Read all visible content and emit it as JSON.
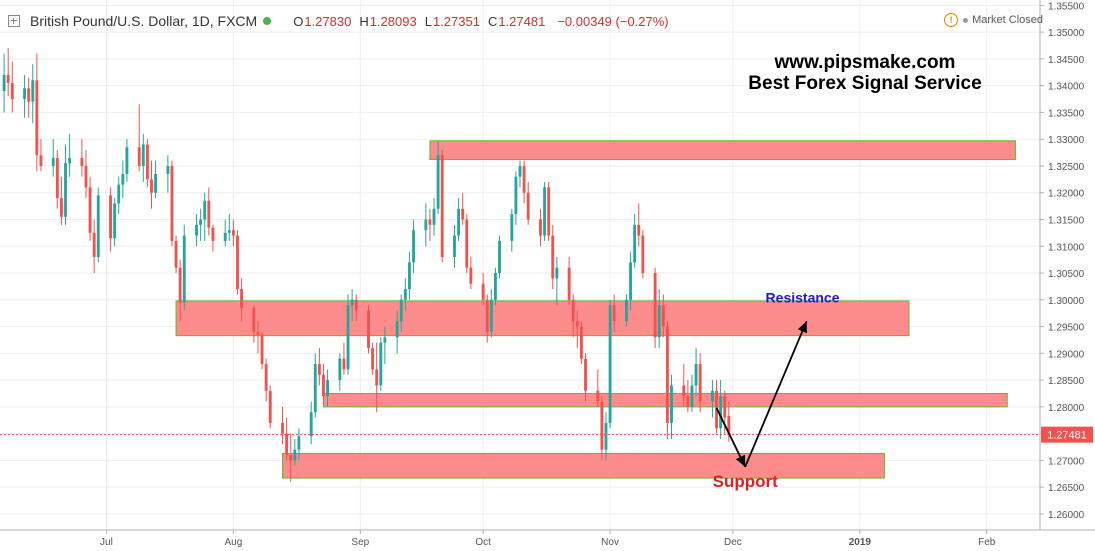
{
  "header": {
    "symbol": "British Pound/U.S. Dollar, 1D, FXCM",
    "open_label": "O",
    "open_value": "1.27830",
    "high_label": "H",
    "high_value": "1.28093",
    "low_label": "L",
    "low_value": "1.27351",
    "close_label": "C",
    "close_value": "1.27481",
    "change": "−0.00349 (−0.27%)"
  },
  "market_status": "Market Closed",
  "watermark": {
    "line1": "www.pipsmake.com",
    "line2": "Best Forex Signal Service"
  },
  "colors": {
    "up": "#26a69a",
    "down": "#ef5350",
    "zone_fill": "#ff8080",
    "zone_border": "#5fb832",
    "resistance_text": "#1a1acc",
    "support_text": "#e02020",
    "price_label_bg": "#ef5350"
  },
  "chart_data": {
    "type": "candlestick",
    "instrument": "GBP/USD",
    "timeframe": "1D",
    "ylim": [
      1.257,
      1.356
    ],
    "xlim": [
      "2018-06-05",
      "2019-02-14"
    ],
    "yticks": [
      "1.35500",
      "1.35000",
      "1.34500",
      "1.34000",
      "1.33500",
      "1.33000",
      "1.32500",
      "1.32000",
      "1.31500",
      "1.31000",
      "1.30500",
      "1.30000",
      "1.29500",
      "1.29000",
      "1.28500",
      "1.28000",
      "1.27500",
      "1.27000",
      "1.26500",
      "1.26000"
    ],
    "xticks": [
      {
        "label": "Jul",
        "date": "2018-07-01"
      },
      {
        "label": "Aug",
        "date": "2018-08-01"
      },
      {
        "label": "Sep",
        "date": "2018-09-01"
      },
      {
        "label": "Oct",
        "date": "2018-10-01"
      },
      {
        "label": "Nov",
        "date": "2018-11-01"
      },
      {
        "label": "Dec",
        "date": "2018-12-01"
      },
      {
        "label": "2019",
        "date": "2019-01-01"
      },
      {
        "label": "Feb",
        "date": "2019-02-01"
      }
    ],
    "last_price": "1.27481",
    "zones": [
      {
        "start": "2018-09-18",
        "end": "2019-02-08",
        "top": 1.3297,
        "bottom": 1.3262
      },
      {
        "start": "2018-07-18",
        "end": "2019-01-13",
        "top": 1.2998,
        "bottom": 1.2933
      },
      {
        "start": "2018-08-23",
        "end": "2019-02-06",
        "top": 1.2825,
        "bottom": 1.28
      },
      {
        "start": "2018-08-13",
        "end": "2019-01-07",
        "top": 1.2713,
        "bottom": 1.2667
      }
    ],
    "annotations": [
      {
        "text": "Resistance",
        "date": "2018-12-18",
        "price": 1.2995
      },
      {
        "text": "Support",
        "date": "2018-12-04",
        "price": 1.265
      }
    ],
    "arrows": [
      {
        "from": {
          "date": "2018-11-27",
          "price": 1.2798
        },
        "to": {
          "date": "2018-12-04",
          "price": 1.2688
        }
      },
      {
        "from": {
          "date": "2018-12-04",
          "price": 1.2688
        },
        "to": {
          "date": "2018-12-19",
          "price": 1.296
        }
      }
    ],
    "candles": [
      {
        "d": "2018-06-06",
        "o": 1.339,
        "h": 1.346,
        "l": 1.335,
        "c": 1.342
      },
      {
        "d": "2018-06-07",
        "o": 1.342,
        "h": 1.347,
        "l": 1.338,
        "c": 1.3405
      },
      {
        "d": "2018-06-08",
        "o": 1.3405,
        "h": 1.3445,
        "l": 1.335,
        "c": 1.3375
      },
      {
        "d": "2018-06-11",
        "o": 1.3375,
        "h": 1.342,
        "l": 1.334,
        "c": 1.3395
      },
      {
        "d": "2018-06-12",
        "o": 1.3395,
        "h": 1.3415,
        "l": 1.334,
        "c": 1.337
      },
      {
        "d": "2018-06-13",
        "o": 1.337,
        "h": 1.344,
        "l": 1.333,
        "c": 1.341
      },
      {
        "d": "2018-06-14",
        "o": 1.341,
        "h": 1.346,
        "l": 1.324,
        "c": 1.327
      },
      {
        "d": "2018-06-15",
        "o": 1.327,
        "h": 1.33,
        "l": 1.324,
        "c": 1.325
      },
      {
        "d": "2018-06-18",
        "o": 1.325,
        "h": 1.33,
        "l": 1.323,
        "c": 1.3265
      },
      {
        "d": "2018-06-19",
        "o": 1.3265,
        "h": 1.328,
        "l": 1.317,
        "c": 1.319
      },
      {
        "d": "2018-06-20",
        "o": 1.319,
        "h": 1.323,
        "l": 1.314,
        "c": 1.3155
      },
      {
        "d": "2018-06-21",
        "o": 1.3155,
        "h": 1.329,
        "l": 1.314,
        "c": 1.3255
      },
      {
        "d": "2018-06-22",
        "o": 1.3255,
        "h": 1.331,
        "l": 1.323,
        "c": 1.3265
      },
      {
        "d": "2018-06-25",
        "o": 1.3265,
        "h": 1.33,
        "l": 1.323,
        "c": 1.325
      },
      {
        "d": "2018-06-26",
        "o": 1.325,
        "h": 1.328,
        "l": 1.319,
        "c": 1.321
      },
      {
        "d": "2018-06-27",
        "o": 1.321,
        "h": 1.323,
        "l": 1.311,
        "c": 1.3125
      },
      {
        "d": "2018-06-28",
        "o": 1.3125,
        "h": 1.315,
        "l": 1.305,
        "c": 1.308
      },
      {
        "d": "2018-06-29",
        "o": 1.308,
        "h": 1.321,
        "l": 1.307,
        "c": 1.3195
      },
      {
        "d": "2018-07-02",
        "o": 1.3195,
        "h": 1.321,
        "l": 1.309,
        "c": 1.3115
      },
      {
        "d": "2018-07-03",
        "o": 1.3115,
        "h": 1.319,
        "l": 1.31,
        "c": 1.318
      },
      {
        "d": "2018-07-04",
        "o": 1.318,
        "h": 1.323,
        "l": 1.316,
        "c": 1.3215
      },
      {
        "d": "2018-07-05",
        "o": 1.3215,
        "h": 1.326,
        "l": 1.319,
        "c": 1.3235
      },
      {
        "d": "2018-07-06",
        "o": 1.3235,
        "h": 1.33,
        "l": 1.322,
        "c": 1.3285
      },
      {
        "d": "2018-07-09",
        "o": 1.3285,
        "h": 1.3365,
        "l": 1.324,
        "c": 1.325
      },
      {
        "d": "2018-07-10",
        "o": 1.325,
        "h": 1.331,
        "l": 1.322,
        "c": 1.329
      },
      {
        "d": "2018-07-11",
        "o": 1.329,
        "h": 1.33,
        "l": 1.321,
        "c": 1.3225
      },
      {
        "d": "2018-07-12",
        "o": 1.3225,
        "h": 1.326,
        "l": 1.317,
        "c": 1.32
      },
      {
        "d": "2018-07-13",
        "o": 1.32,
        "h": 1.326,
        "l": 1.319,
        "c": 1.3235
      },
      {
        "d": "2018-07-16",
        "o": 1.3235,
        "h": 1.327,
        "l": 1.32,
        "c": 1.325
      },
      {
        "d": "2018-07-17",
        "o": 1.325,
        "h": 1.326,
        "l": 1.31,
        "c": 1.311
      },
      {
        "d": "2018-07-18",
        "o": 1.311,
        "h": 1.312,
        "l": 1.305,
        "c": 1.306
      },
      {
        "d": "2018-07-19",
        "o": 1.306,
        "h": 1.3075,
        "l": 1.296,
        "c": 1.2995
      },
      {
        "d": "2018-07-20",
        "o": 1.2995,
        "h": 1.314,
        "l": 1.298,
        "c": 1.312
      },
      {
        "d": "2018-07-23",
        "o": 1.312,
        "h": 1.316,
        "l": 1.31,
        "c": 1.314
      },
      {
        "d": "2018-07-24",
        "o": 1.314,
        "h": 1.317,
        "l": 1.311,
        "c": 1.315
      },
      {
        "d": "2018-07-25",
        "o": 1.315,
        "h": 1.32,
        "l": 1.311,
        "c": 1.3185
      },
      {
        "d": "2018-07-26",
        "o": 1.3185,
        "h": 1.321,
        "l": 1.312,
        "c": 1.3135
      },
      {
        "d": "2018-07-27",
        "o": 1.3135,
        "h": 1.314,
        "l": 1.309,
        "c": 1.311
      },
      {
        "d": "2018-07-30",
        "o": 1.311,
        "h": 1.315,
        "l": 1.31,
        "c": 1.3125
      },
      {
        "d": "2018-07-31",
        "o": 1.3125,
        "h": 1.316,
        "l": 1.311,
        "c": 1.313
      },
      {
        "d": "2018-08-01",
        "o": 1.313,
        "h": 1.315,
        "l": 1.31,
        "c": 1.312
      },
      {
        "d": "2018-08-02",
        "o": 1.312,
        "h": 1.313,
        "l": 1.301,
        "c": 1.302
      },
      {
        "d": "2018-08-03",
        "o": 1.302,
        "h": 1.304,
        "l": 1.296,
        "c": 1.2985
      },
      {
        "d": "2018-08-06",
        "o": 1.2985,
        "h": 1.299,
        "l": 1.292,
        "c": 1.294
      },
      {
        "d": "2018-08-07",
        "o": 1.294,
        "h": 1.296,
        "l": 1.29,
        "c": 1.2935
      },
      {
        "d": "2018-08-08",
        "o": 1.2935,
        "h": 1.294,
        "l": 1.287,
        "c": 1.288
      },
      {
        "d": "2018-08-09",
        "o": 1.288,
        "h": 1.289,
        "l": 1.281,
        "c": 1.283
      },
      {
        "d": "2018-08-10",
        "o": 1.283,
        "h": 1.284,
        "l": 1.276,
        "c": 1.277
      },
      {
        "d": "2018-08-13",
        "o": 1.277,
        "h": 1.28,
        "l": 1.273,
        "c": 1.275
      },
      {
        "d": "2018-08-14",
        "o": 1.275,
        "h": 1.278,
        "l": 1.27,
        "c": 1.271
      },
      {
        "d": "2018-08-15",
        "o": 1.271,
        "h": 1.275,
        "l": 1.266,
        "c": 1.27
      },
      {
        "d": "2018-08-16",
        "o": 1.27,
        "h": 1.274,
        "l": 1.269,
        "c": 1.272
      },
      {
        "d": "2018-08-17",
        "o": 1.272,
        "h": 1.276,
        "l": 1.27,
        "c": 1.2745
      },
      {
        "d": "2018-08-20",
        "o": 1.2745,
        "h": 1.281,
        "l": 1.273,
        "c": 1.279
      },
      {
        "d": "2018-08-21",
        "o": 1.279,
        "h": 1.29,
        "l": 1.278,
        "c": 1.288
      },
      {
        "d": "2018-08-22",
        "o": 1.288,
        "h": 1.291,
        "l": 1.284,
        "c": 1.286
      },
      {
        "d": "2018-08-23",
        "o": 1.286,
        "h": 1.288,
        "l": 1.2805,
        "c": 1.282
      },
      {
        "d": "2018-08-24",
        "o": 1.282,
        "h": 1.287,
        "l": 1.28,
        "c": 1.285
      },
      {
        "d": "2018-08-27",
        "o": 1.285,
        "h": 1.29,
        "l": 1.283,
        "c": 1.289
      },
      {
        "d": "2018-08-28",
        "o": 1.289,
        "h": 1.292,
        "l": 1.286,
        "c": 1.287
      },
      {
        "d": "2018-08-29",
        "o": 1.287,
        "h": 1.301,
        "l": 1.286,
        "c": 1.299
      },
      {
        "d": "2018-08-30",
        "o": 1.299,
        "h": 1.302,
        "l": 1.296,
        "c": 1.3
      },
      {
        "d": "2018-08-31",
        "o": 1.3,
        "h": 1.301,
        "l": 1.296,
        "c": 1.298
      },
      {
        "d": "2018-09-03",
        "o": 1.298,
        "h": 1.299,
        "l": 1.29,
        "c": 1.291
      },
      {
        "d": "2018-09-04",
        "o": 1.291,
        "h": 1.292,
        "l": 1.286,
        "c": 1.287
      },
      {
        "d": "2018-09-05",
        "o": 1.287,
        "h": 1.292,
        "l": 1.279,
        "c": 1.284
      },
      {
        "d": "2018-09-06",
        "o": 1.284,
        "h": 1.293,
        "l": 1.283,
        "c": 1.292
      },
      {
        "d": "2018-09-07",
        "o": 1.292,
        "h": 1.295,
        "l": 1.288,
        "c": 1.293
      },
      {
        "d": "2018-09-10",
        "o": 1.293,
        "h": 1.298,
        "l": 1.29,
        "c": 1.296
      },
      {
        "d": "2018-09-11",
        "o": 1.296,
        "h": 1.301,
        "l": 1.294,
        "c": 1.3
      },
      {
        "d": "2018-09-12",
        "o": 1.3,
        "h": 1.304,
        "l": 1.298,
        "c": 1.302
      },
      {
        "d": "2018-09-13",
        "o": 1.302,
        "h": 1.309,
        "l": 1.3,
        "c": 1.307
      },
      {
        "d": "2018-09-14",
        "o": 1.307,
        "h": 1.315,
        "l": 1.305,
        "c": 1.313
      },
      {
        "d": "2018-09-17",
        "o": 1.313,
        "h": 1.318,
        "l": 1.31,
        "c": 1.315
      },
      {
        "d": "2018-09-18",
        "o": 1.315,
        "h": 1.317,
        "l": 1.311,
        "c": 1.314
      },
      {
        "d": "2018-09-19",
        "o": 1.314,
        "h": 1.319,
        "l": 1.312,
        "c": 1.317
      },
      {
        "d": "2018-09-20",
        "o": 1.317,
        "h": 1.3295,
        "l": 1.316,
        "c": 1.327
      },
      {
        "d": "2018-09-21",
        "o": 1.327,
        "h": 1.328,
        "l": 1.307,
        "c": 1.308
      },
      {
        "d": "2018-09-24",
        "o": 1.308,
        "h": 1.314,
        "l": 1.306,
        "c": 1.312
      },
      {
        "d": "2018-09-25",
        "o": 1.312,
        "h": 1.319,
        "l": 1.311,
        "c": 1.317
      },
      {
        "d": "2018-09-26",
        "o": 1.317,
        "h": 1.32,
        "l": 1.314,
        "c": 1.315
      },
      {
        "d": "2018-09-27",
        "o": 1.315,
        "h": 1.316,
        "l": 1.305,
        "c": 1.306
      },
      {
        "d": "2018-09-28",
        "o": 1.306,
        "h": 1.308,
        "l": 1.302,
        "c": 1.303
      },
      {
        "d": "2018-10-01",
        "o": 1.303,
        "h": 1.305,
        "l": 1.299,
        "c": 1.3
      },
      {
        "d": "2018-10-02",
        "o": 1.3,
        "h": 1.301,
        "l": 1.292,
        "c": 1.294
      },
      {
        "d": "2018-10-03",
        "o": 1.294,
        "h": 1.302,
        "l": 1.293,
        "c": 1.3
      },
      {
        "d": "2018-10-04",
        "o": 1.3,
        "h": 1.306,
        "l": 1.299,
        "c": 1.305
      },
      {
        "d": "2018-10-05",
        "o": 1.305,
        "h": 1.312,
        "l": 1.304,
        "c": 1.311
      },
      {
        "d": "2018-10-08",
        "o": 1.311,
        "h": 1.317,
        "l": 1.309,
        "c": 1.316
      },
      {
        "d": "2018-10-09",
        "o": 1.316,
        "h": 1.324,
        "l": 1.314,
        "c": 1.323
      },
      {
        "d": "2018-10-10",
        "o": 1.323,
        "h": 1.326,
        "l": 1.321,
        "c": 1.325
      },
      {
        "d": "2018-10-11",
        "o": 1.325,
        "h": 1.326,
        "l": 1.318,
        "c": 1.32
      },
      {
        "d": "2018-10-12",
        "o": 1.32,
        "h": 1.322,
        "l": 1.314,
        "c": 1.315
      },
      {
        "d": "2018-10-15",
        "o": 1.315,
        "h": 1.317,
        "l": 1.31,
        "c": 1.312
      },
      {
        "d": "2018-10-16",
        "o": 1.312,
        "h": 1.322,
        "l": 1.311,
        "c": 1.321
      },
      {
        "d": "2018-10-17",
        "o": 1.321,
        "h": 1.322,
        "l": 1.311,
        "c": 1.312
      },
      {
        "d": "2018-10-18",
        "o": 1.312,
        "h": 1.314,
        "l": 1.302,
        "c": 1.304
      },
      {
        "d": "2018-10-19",
        "o": 1.304,
        "h": 1.308,
        "l": 1.299,
        "c": 1.306
      },
      {
        "d": "2018-10-22",
        "o": 1.306,
        "h": 1.308,
        "l": 1.299,
        "c": 1.3
      },
      {
        "d": "2018-10-23",
        "o": 1.3,
        "h": 1.301,
        "l": 1.293,
        "c": 1.296
      },
      {
        "d": "2018-10-24",
        "o": 1.296,
        "h": 1.298,
        "l": 1.291,
        "c": 1.295
      },
      {
        "d": "2018-10-25",
        "o": 1.295,
        "h": 1.296,
        "l": 1.288,
        "c": 1.289
      },
      {
        "d": "2018-10-26",
        "o": 1.289,
        "h": 1.29,
        "l": 1.281,
        "c": 1.283
      },
      {
        "d": "2018-10-29",
        "o": 1.283,
        "h": 1.287,
        "l": 1.28,
        "c": 1.281
      },
      {
        "d": "2018-10-30",
        "o": 1.281,
        "h": 1.282,
        "l": 1.27,
        "c": 1.272
      },
      {
        "d": "2018-10-31",
        "o": 1.272,
        "h": 1.279,
        "l": 1.27,
        "c": 1.277
      },
      {
        "d": "2018-11-01",
        "o": 1.277,
        "h": 1.3,
        "l": 1.276,
        "c": 1.299
      },
      {
        "d": "2018-11-02",
        "o": 1.299,
        "h": 1.301,
        "l": 1.294,
        "c": 1.296
      },
      {
        "d": "2018-11-05",
        "o": 1.296,
        "h": 1.301,
        "l": 1.295,
        "c": 1.3
      },
      {
        "d": "2018-11-06",
        "o": 1.3,
        "h": 1.309,
        "l": 1.298,
        "c": 1.307
      },
      {
        "d": "2018-11-07",
        "o": 1.307,
        "h": 1.316,
        "l": 1.306,
        "c": 1.314
      },
      {
        "d": "2018-11-08",
        "o": 1.314,
        "h": 1.318,
        "l": 1.31,
        "c": 1.312
      },
      {
        "d": "2018-11-09",
        "o": 1.312,
        "h": 1.313,
        "l": 1.304,
        "c": 1.305
      },
      {
        "d": "2018-11-12",
        "o": 1.305,
        "h": 1.306,
        "l": 1.291,
        "c": 1.293
      },
      {
        "d": "2018-11-13",
        "o": 1.293,
        "h": 1.302,
        "l": 1.291,
        "c": 1.299
      },
      {
        "d": "2018-11-14",
        "o": 1.299,
        "h": 1.301,
        "l": 1.293,
        "c": 1.295
      },
      {
        "d": "2018-11-15",
        "o": 1.295,
        "h": 1.296,
        "l": 1.274,
        "c": 1.277
      },
      {
        "d": "2018-11-16",
        "o": 1.277,
        "h": 1.286,
        "l": 1.274,
        "c": 1.284
      },
      {
        "d": "2018-11-19",
        "o": 1.284,
        "h": 1.288,
        "l": 1.28,
        "c": 1.282
      },
      {
        "d": "2018-11-20",
        "o": 1.282,
        "h": 1.285,
        "l": 1.279,
        "c": 1.28
      },
      {
        "d": "2018-11-21",
        "o": 1.28,
        "h": 1.286,
        "l": 1.279,
        "c": 1.284
      },
      {
        "d": "2018-11-22",
        "o": 1.284,
        "h": 1.291,
        "l": 1.282,
        "c": 1.288
      },
      {
        "d": "2018-11-23",
        "o": 1.288,
        "h": 1.29,
        "l": 1.279,
        "c": 1.281
      },
      {
        "d": "2018-11-26",
        "o": 1.281,
        "h": 1.285,
        "l": 1.278,
        "c": 1.283
      },
      {
        "d": "2018-11-27",
        "o": 1.283,
        "h": 1.285,
        "l": 1.275,
        "c": 1.276
      },
      {
        "d": "2018-11-28",
        "o": 1.276,
        "h": 1.285,
        "l": 1.274,
        "c": 1.282
      },
      {
        "d": "2018-11-29",
        "o": 1.282,
        "h": 1.283,
        "l": 1.275,
        "c": 1.278
      },
      {
        "d": "2018-11-30",
        "o": 1.2783,
        "h": 1.2809,
        "l": 1.2735,
        "c": 1.2748
      }
    ]
  }
}
